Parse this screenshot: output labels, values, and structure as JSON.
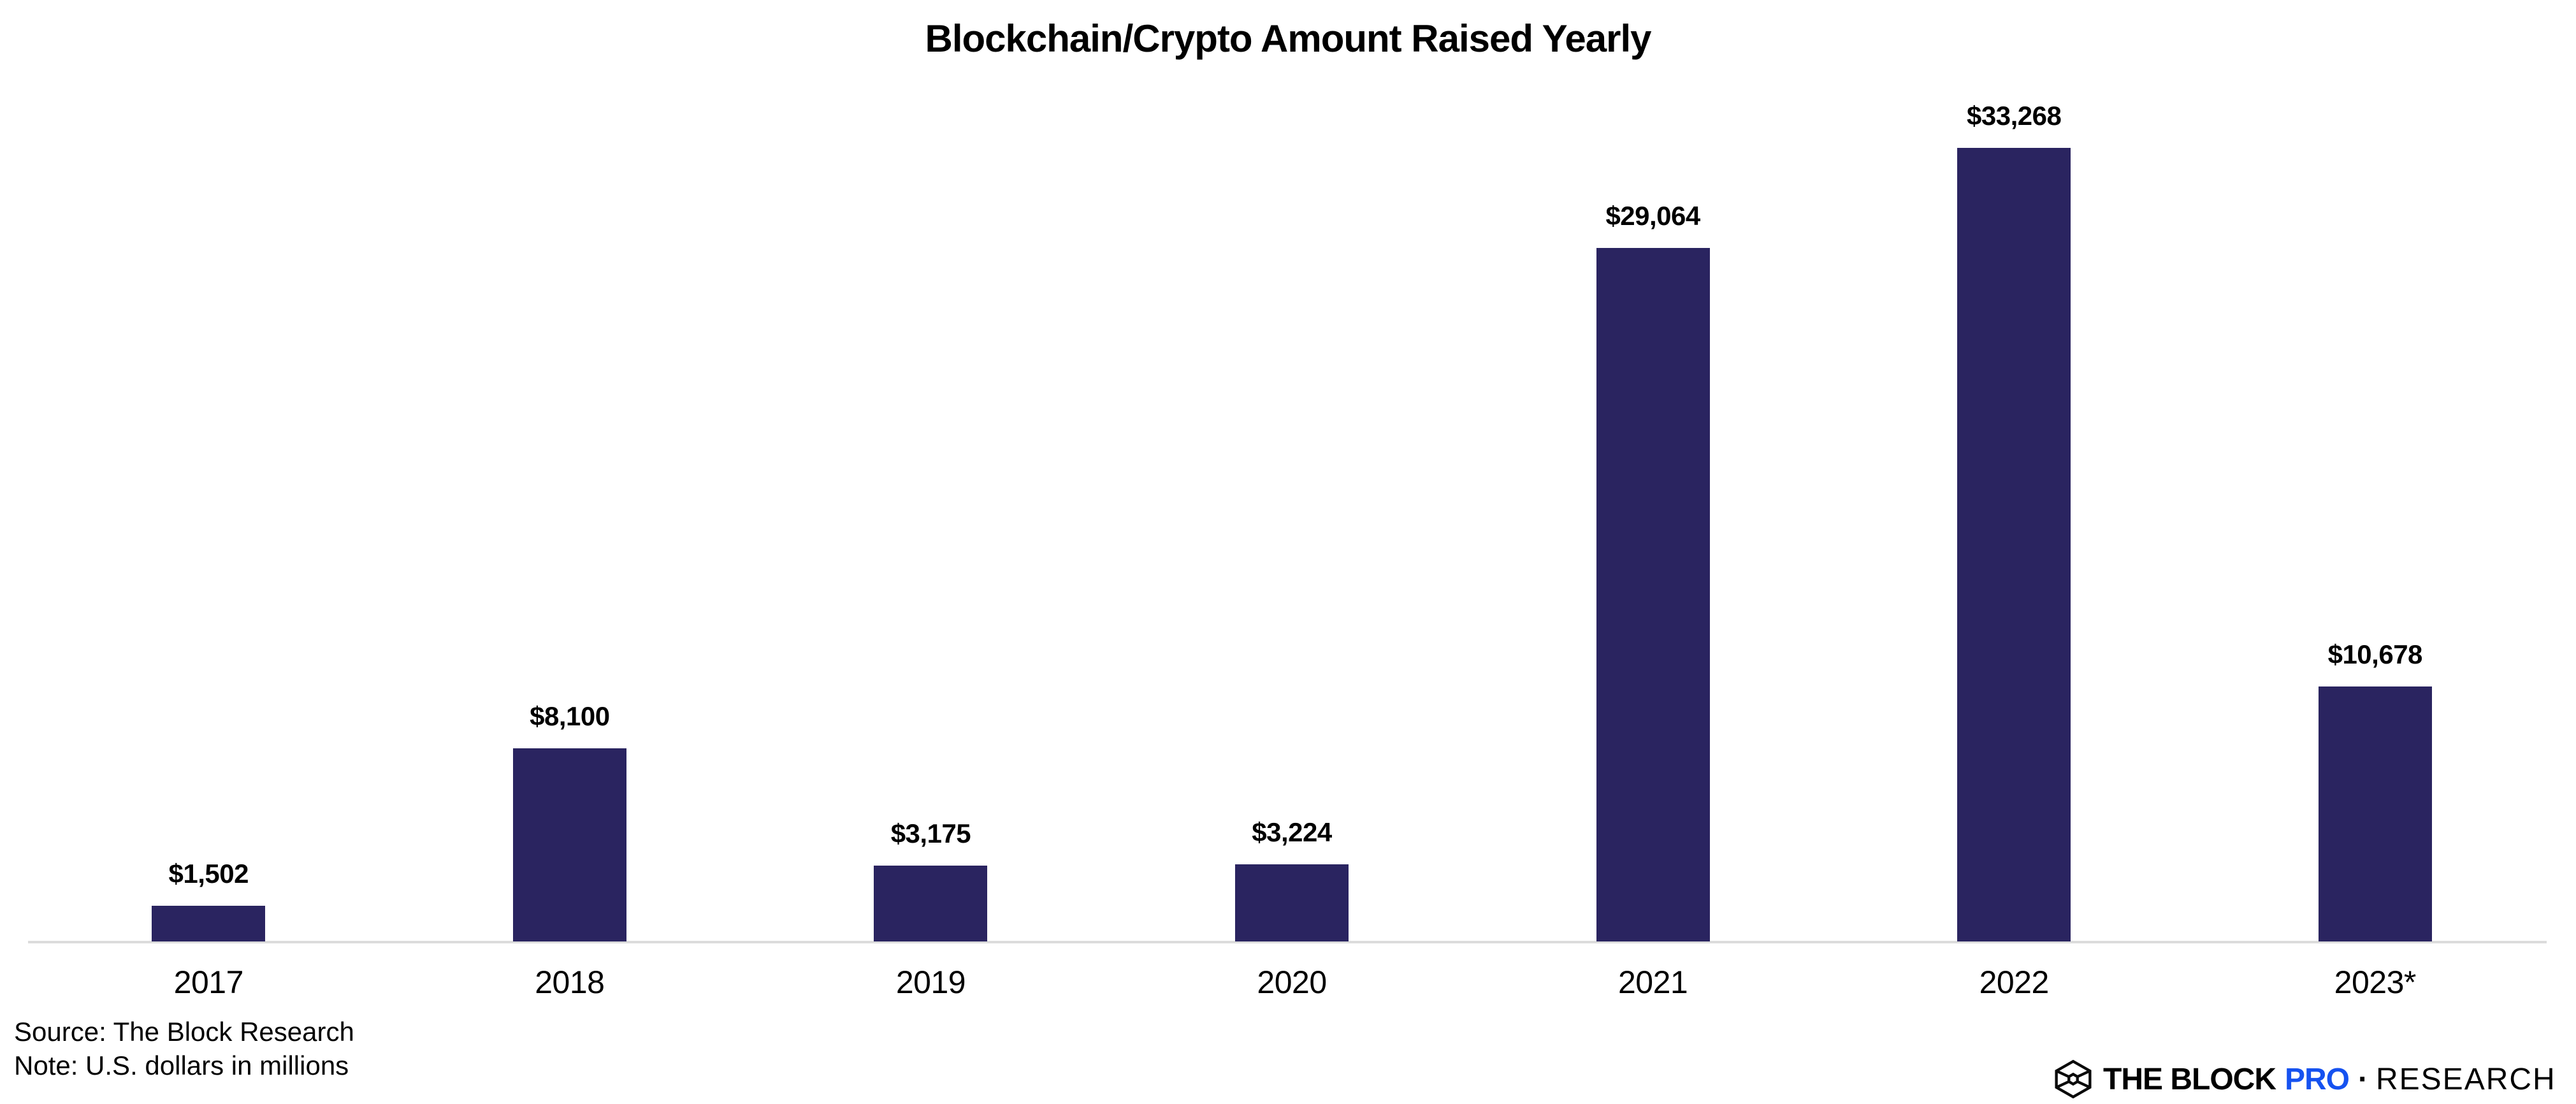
{
  "chart_data": {
    "type": "bar",
    "title": "Blockchain/Crypto Amount Raised Yearly",
    "categories": [
      "2017",
      "2018",
      "2019",
      "2020",
      "2021",
      "2022",
      "2023*"
    ],
    "values": [
      1502,
      8100,
      3175,
      3224,
      29064,
      33268,
      10678
    ],
    "value_labels": [
      "$1,502",
      "$8,100",
      "$3,175",
      "$3,224",
      "$29,064",
      "$33,268",
      "$10,678"
    ],
    "xlabel": "",
    "ylabel": "",
    "ylim": [
      0,
      33268
    ],
    "grid": false,
    "legend": "none",
    "units": "U.S. dollars in millions",
    "bar_color": "#2a2460",
    "axis_line_color": "#dcdcdc"
  },
  "footer": {
    "source": "Source: The Block Research",
    "note": "Note: U.S. dollars in millions"
  },
  "logo": {
    "brand": "THE BLOCK",
    "pro": "PRO",
    "separator": "·",
    "suffix": "RESEARCH",
    "pro_color": "#1652f0",
    "icon": "block-cube-icon"
  }
}
